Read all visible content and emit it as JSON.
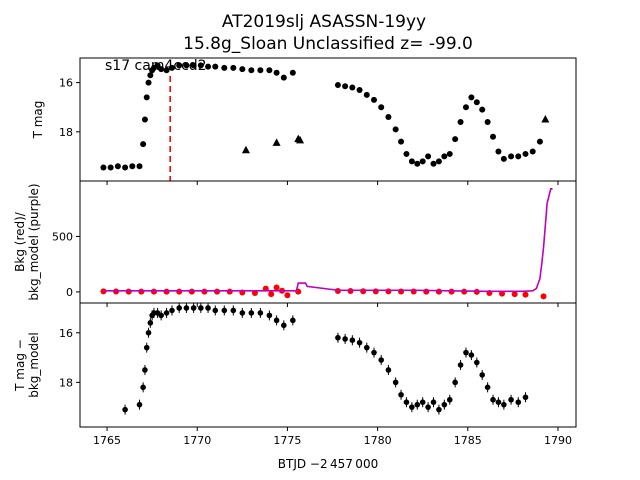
{
  "figure": {
    "title_line1": "AT2019slj  ASASSN-19yy",
    "title_line2": "15.8g_Sloan Unclassified z= -99.0",
    "xlabel": "BTJD −2 457 000",
    "annotation": "s17 cam4ccd2"
  },
  "colors": {
    "lightcurve": "#000000",
    "background": "#ff0000",
    "bkg_model": "#bf00bf",
    "marker_line": "#ff0000"
  },
  "chart_data": [
    {
      "panel": "top",
      "type": "scatter",
      "ylabel": "T mag",
      "xlim": [
        1763.5,
        1791.0
      ],
      "ylim": [
        20.0,
        15.0
      ],
      "y_inverted": true,
      "xticks": [
        1765,
        1770,
        1775,
        1780,
        1785,
        1790
      ],
      "yticks": [
        16,
        18
      ],
      "vertical_marker_x": 1768.5,
      "series": [
        {
          "marker": "circle",
          "x": [
            1764.8,
            1765.2,
            1765.6,
            1766.0,
            1766.4,
            1766.8,
            1767.0,
            1767.1,
            1767.2,
            1767.3,
            1767.4,
            1767.5,
            1767.6,
            1767.8,
            1768.0,
            1768.3,
            1768.6,
            1769.0,
            1769.4,
            1769.8,
            1770.2,
            1770.6,
            1771.0,
            1771.5,
            1772.0,
            1772.5,
            1773.0,
            1773.5,
            1774.0,
            1774.4,
            1774.8,
            1775.3,
            1777.8,
            1778.2,
            1778.6,
            1779.0,
            1779.4,
            1779.8,
            1780.2,
            1780.6,
            1781.0,
            1781.3,
            1781.6,
            1781.9,
            1782.2,
            1782.5,
            1782.8,
            1783.1,
            1783.4,
            1783.7,
            1784.0,
            1784.3,
            1784.6,
            1784.9,
            1785.2,
            1785.5,
            1785.8,
            1786.1,
            1786.4,
            1786.7,
            1787.0,
            1787.4,
            1787.8,
            1788.2,
            1788.6,
            1789.0
          ],
          "y": [
            19.45,
            19.45,
            19.4,
            19.45,
            19.4,
            19.4,
            18.5,
            17.5,
            16.6,
            16.0,
            15.7,
            15.5,
            15.4,
            15.3,
            15.45,
            15.5,
            15.4,
            15.3,
            15.3,
            15.3,
            15.3,
            15.35,
            15.35,
            15.4,
            15.4,
            15.45,
            15.5,
            15.5,
            15.5,
            15.6,
            15.8,
            15.6,
            16.1,
            16.15,
            16.2,
            16.3,
            16.5,
            16.7,
            17.0,
            17.4,
            17.9,
            18.4,
            18.9,
            19.2,
            19.3,
            19.2,
            19.0,
            19.3,
            19.2,
            19.0,
            18.9,
            18.3,
            17.6,
            17.0,
            16.6,
            16.8,
            17.1,
            17.6,
            18.2,
            18.8,
            19.1,
            19.0,
            19.0,
            18.9,
            18.8,
            18.4
          ]
        },
        {
          "marker": "triangle",
          "x": [
            1772.7,
            1774.4,
            1775.6,
            1775.7,
            1789.3
          ],
          "y": [
            18.75,
            18.45,
            18.3,
            18.35,
            17.5
          ]
        }
      ]
    },
    {
      "panel": "middle",
      "type": "line",
      "ylabel": "Bkg (red)/\nbkg_model (purple)",
      "xlim": [
        1763.5,
        1791.0
      ],
      "ylim": [
        -100,
        1000
      ],
      "yticks": [
        0,
        500
      ],
      "series": [
        {
          "marker": "circle",
          "x": [
            1764.8,
            1765.5,
            1766.2,
            1766.9,
            1767.6,
            1768.3,
            1769.0,
            1769.7,
            1770.4,
            1771.1,
            1771.8,
            1772.5,
            1773.2,
            1773.8,
            1774.1,
            1774.4,
            1774.7,
            1775.0,
            1775.6,
            1777.8,
            1778.5,
            1779.2,
            1779.9,
            1780.6,
            1781.3,
            1782.0,
            1782.7,
            1783.4,
            1784.1,
            1784.8,
            1785.5,
            1786.2,
            1786.9,
            1787.6,
            1788.2,
            1789.2
          ],
          "y": [
            5,
            4,
            3,
            3,
            2,
            2,
            2,
            2,
            3,
            3,
            2,
            -5,
            -10,
            30,
            -20,
            40,
            10,
            -30,
            2,
            8,
            8,
            6,
            5,
            5,
            4,
            4,
            3,
            3,
            2,
            2,
            0,
            -10,
            -15,
            -20,
            -25,
            -40
          ]
        },
        {
          "marker": "line",
          "x": [
            1764.8,
            1766.0,
            1768.0,
            1770.0,
            1772.0,
            1774.0,
            1775.0,
            1775.5,
            1775.6,
            1776.0,
            1776.1,
            1777.8,
            1780.0,
            1782.0,
            1784.0,
            1786.0,
            1788.0,
            1788.6,
            1788.8,
            1789.0,
            1789.1,
            1789.2,
            1789.3,
            1789.4,
            1789.6,
            1789.7
          ],
          "y": [
            10,
            10,
            10,
            10,
            10,
            10,
            10,
            10,
            80,
            80,
            50,
            15,
            15,
            15,
            10,
            5,
            5,
            10,
            30,
            120,
            250,
            400,
            600,
            800,
            930,
            930
          ]
        }
      ]
    },
    {
      "panel": "bottom",
      "type": "scatter",
      "ylabel": "T mag −\nbkg_model",
      "xlim": [
        1763.5,
        1791.0
      ],
      "ylim": [
        19.8,
        14.8
      ],
      "y_inverted": true,
      "yticks": [
        16,
        18
      ],
      "series": [
        {
          "marker": "circle-errorbar",
          "x": [
            1766.0,
            1766.8,
            1767.0,
            1767.1,
            1767.2,
            1767.3,
            1767.4,
            1767.5,
            1767.6,
            1767.8,
            1768.0,
            1768.3,
            1768.6,
            1769.0,
            1769.4,
            1769.8,
            1770.2,
            1770.6,
            1771.0,
            1771.5,
            1772.0,
            1772.5,
            1773.0,
            1773.5,
            1774.0,
            1774.4,
            1774.8,
            1775.3,
            1777.8,
            1778.2,
            1778.6,
            1779.0,
            1779.4,
            1779.8,
            1780.2,
            1780.6,
            1781.0,
            1781.3,
            1781.6,
            1781.9,
            1782.2,
            1782.5,
            1782.8,
            1783.1,
            1783.4,
            1783.7,
            1784.0,
            1784.3,
            1784.6,
            1784.9,
            1785.2,
            1785.5,
            1785.8,
            1786.1,
            1786.4,
            1786.7,
            1787.0,
            1787.4,
            1787.8,
            1788.2
          ],
          "y": [
            19.1,
            18.9,
            18.2,
            17.5,
            16.6,
            16.0,
            15.6,
            15.3,
            15.2,
            15.2,
            15.3,
            15.2,
            15.1,
            15.0,
            15.0,
            15.0,
            15.0,
            15.0,
            15.1,
            15.1,
            15.1,
            15.2,
            15.2,
            15.2,
            15.3,
            15.5,
            15.7,
            15.5,
            16.2,
            16.25,
            16.3,
            16.4,
            16.6,
            16.8,
            17.1,
            17.5,
            18.0,
            18.5,
            18.8,
            19.0,
            18.9,
            18.8,
            19.0,
            18.8,
            19.1,
            18.9,
            18.7,
            18.0,
            17.3,
            16.8,
            16.9,
            17.2,
            17.7,
            18.2,
            18.7,
            18.8,
            18.9,
            18.7,
            18.8,
            18.6
          ]
        }
      ]
    }
  ]
}
